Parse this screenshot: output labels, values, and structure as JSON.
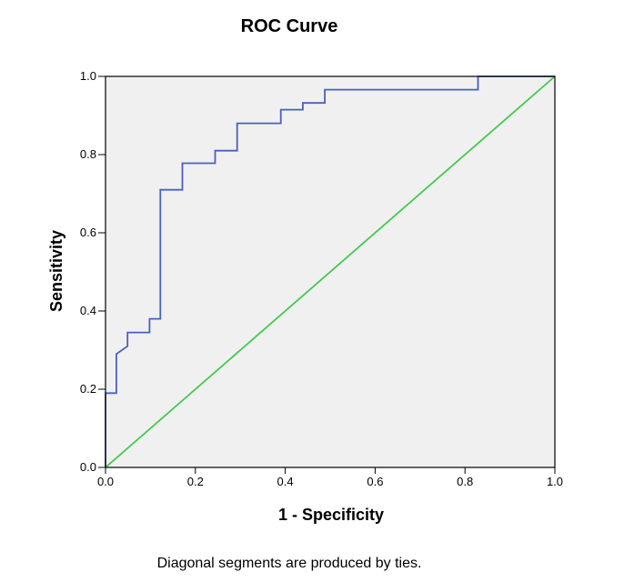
{
  "chart_data": {
    "type": "line",
    "title": "ROC Curve",
    "xlabel": "1 - Specificity",
    "ylabel": "Sensitivity",
    "footnote": "Diagonal segments are produced by ties.",
    "xlim": [
      0,
      1
    ],
    "ylim": [
      0,
      1
    ],
    "x_ticks": [
      "0.0",
      "0.2",
      "0.4",
      "0.6",
      "0.8",
      "1.0"
    ],
    "y_ticks": [
      "0.0",
      "0.2",
      "0.4",
      "0.6",
      "0.8",
      "1.0"
    ],
    "grid": false,
    "background_color": "#f0f0f0",
    "series": [
      {
        "color": "#4a5fbe",
        "x": [
          0,
          0,
          0.024,
          0.024,
          0.049,
          0.049,
          0.098,
          0.098,
          0.122,
          0.122,
          0.171,
          0.171,
          0.244,
          0.244,
          0.293,
          0.293,
          0.39,
          0.39,
          0.439,
          0.439,
          0.488,
          0.488,
          0.829,
          0.829,
          1.0
        ],
        "y": [
          0,
          0.19,
          0.19,
          0.29,
          0.31,
          0.345,
          0.345,
          0.38,
          0.38,
          0.71,
          0.71,
          0.778,
          0.778,
          0.81,
          0.81,
          0.88,
          0.88,
          0.915,
          0.915,
          0.932,
          0.932,
          0.966,
          0.966,
          1.0,
          1.0
        ]
      },
      {
        "color": "#44c94e",
        "x": [
          0,
          1
        ],
        "y": [
          0,
          1
        ]
      }
    ]
  }
}
